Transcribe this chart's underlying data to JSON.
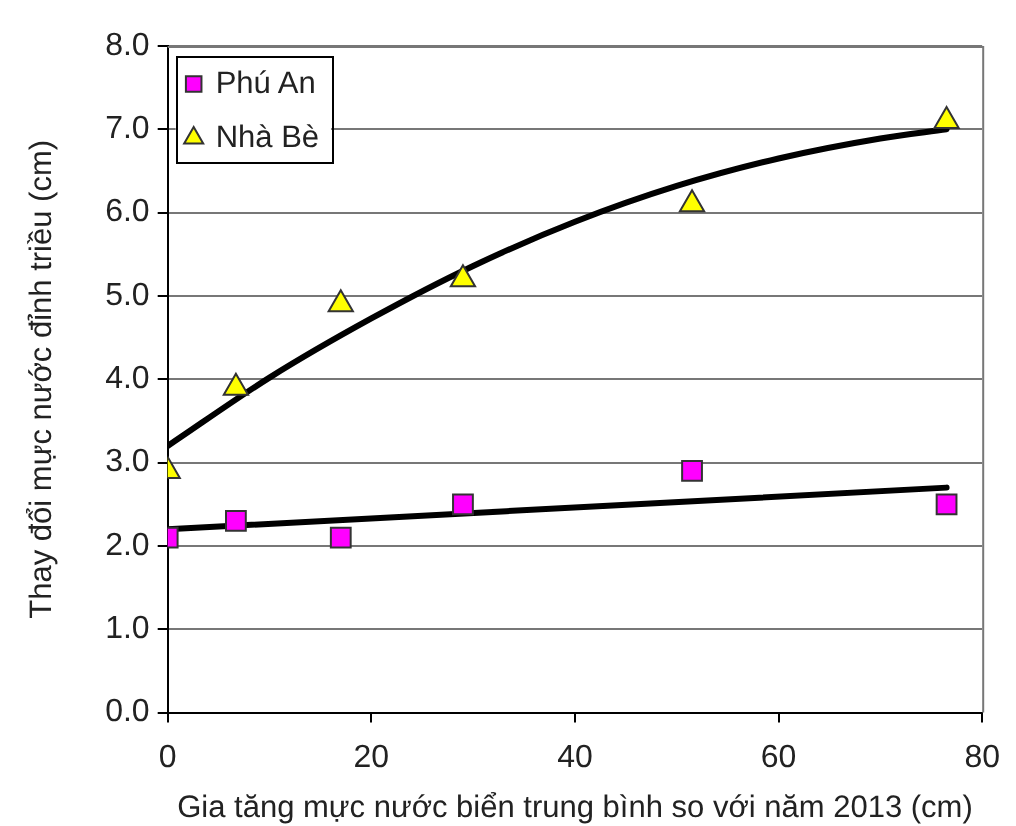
{
  "chart_data": {
    "type": "scatter",
    "xlabel": "Gia tăng mực nước biển trung bình so với năm 2013 (cm)",
    "ylabel": "Thay đổi mực nước đỉnh triều (cm)",
    "series": [
      {
        "name": "Phú An",
        "color": "#ff00ff",
        "marker": "square",
        "x": [
          0,
          6.7,
          17,
          29,
          51.5,
          76.5
        ],
        "values": [
          2.1,
          2.3,
          2.1,
          2.5,
          2.9,
          2.5
        ]
      },
      {
        "name": "Nhà Bè",
        "color": "#ffff00",
        "marker": "triangle",
        "x": [
          0,
          6.7,
          17,
          29,
          51.5,
          76.5
        ],
        "values": [
          2.9,
          3.9,
          4.9,
          5.2,
          6.1,
          7.1
        ]
      },
      {
        "type": "line",
        "color": "#000000",
        "x": [
          0,
          76.5
        ],
        "values": [
          2.2,
          2.7
        ]
      },
      {
        "type": "line",
        "color": "#000000",
        "x": [
          0,
          10,
          20,
          30,
          40,
          50,
          60,
          70,
          76.5
        ],
        "values": [
          3.2,
          4.02,
          4.73,
          5.36,
          5.89,
          6.32,
          6.65,
          6.89,
          7.0
        ]
      }
    ],
    "xlim": [
      0,
      80
    ],
    "xticks": [
      0,
      20,
      40,
      60,
      80
    ],
    "ylim": [
      0,
      8
    ],
    "yticks": [
      {
        "value": 0,
        "label": "0.0"
      },
      {
        "value": 1,
        "label": "1.0"
      },
      {
        "value": 2,
        "label": "2.0"
      },
      {
        "value": 3,
        "label": "3.0"
      },
      {
        "value": 4,
        "label": "4.0"
      },
      {
        "value": 5,
        "label": "5.0"
      },
      {
        "value": 6,
        "label": "6.0"
      },
      {
        "value": 7,
        "label": "7.0"
      },
      {
        "value": 8,
        "label": "8.0"
      }
    ],
    "grid": "y",
    "legend": "top left"
  }
}
